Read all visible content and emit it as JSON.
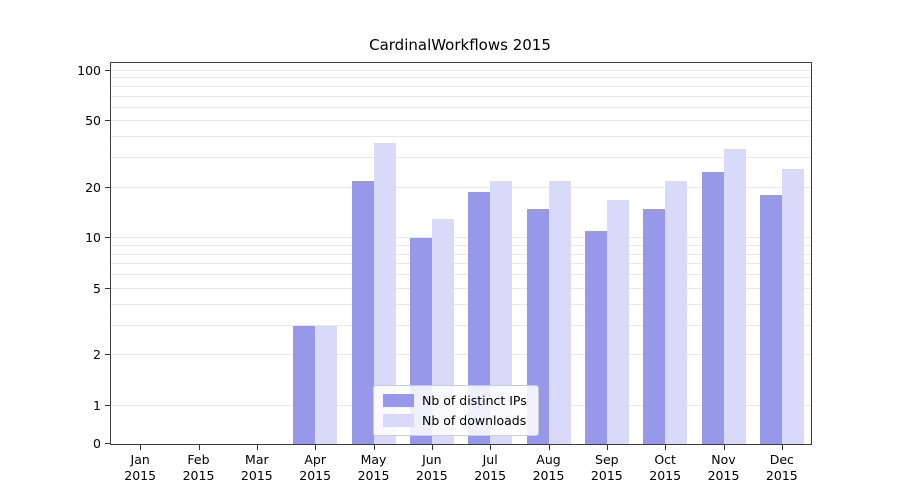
{
  "chart_data": {
    "type": "bar",
    "title": "CardinalWorkflows 2015",
    "categories": [
      "Jan",
      "Feb",
      "Mar",
      "Apr",
      "May",
      "Jun",
      "Jul",
      "Aug",
      "Sep",
      "Oct",
      "Nov",
      "Dec"
    ],
    "category_year": "2015",
    "series": [
      {
        "name": "Nb of distinct IPs",
        "color": "#9898ea",
        "values": [
          0,
          0,
          0,
          3,
          22,
          10,
          19,
          15,
          11,
          15,
          25,
          18
        ]
      },
      {
        "name": "Nb of downloads",
        "color": "#d9d9f9",
        "values": [
          0,
          0,
          0,
          3,
          37,
          13,
          22,
          22,
          17,
          22,
          34,
          26
        ]
      }
    ],
    "y_ticks": [
      0,
      1,
      2,
      5,
      10,
      20,
      50,
      100
    ],
    "y_scale": "symlog",
    "ylim": [
      0,
      110
    ],
    "grid": true,
    "grid_values": [
      1,
      2,
      3,
      4,
      5,
      6,
      7,
      8,
      9,
      10,
      20,
      30,
      40,
      50,
      60,
      70,
      80,
      90,
      100
    ],
    "grid_color": "#e8e8e8",
    "legend_position": "lower-center"
  }
}
